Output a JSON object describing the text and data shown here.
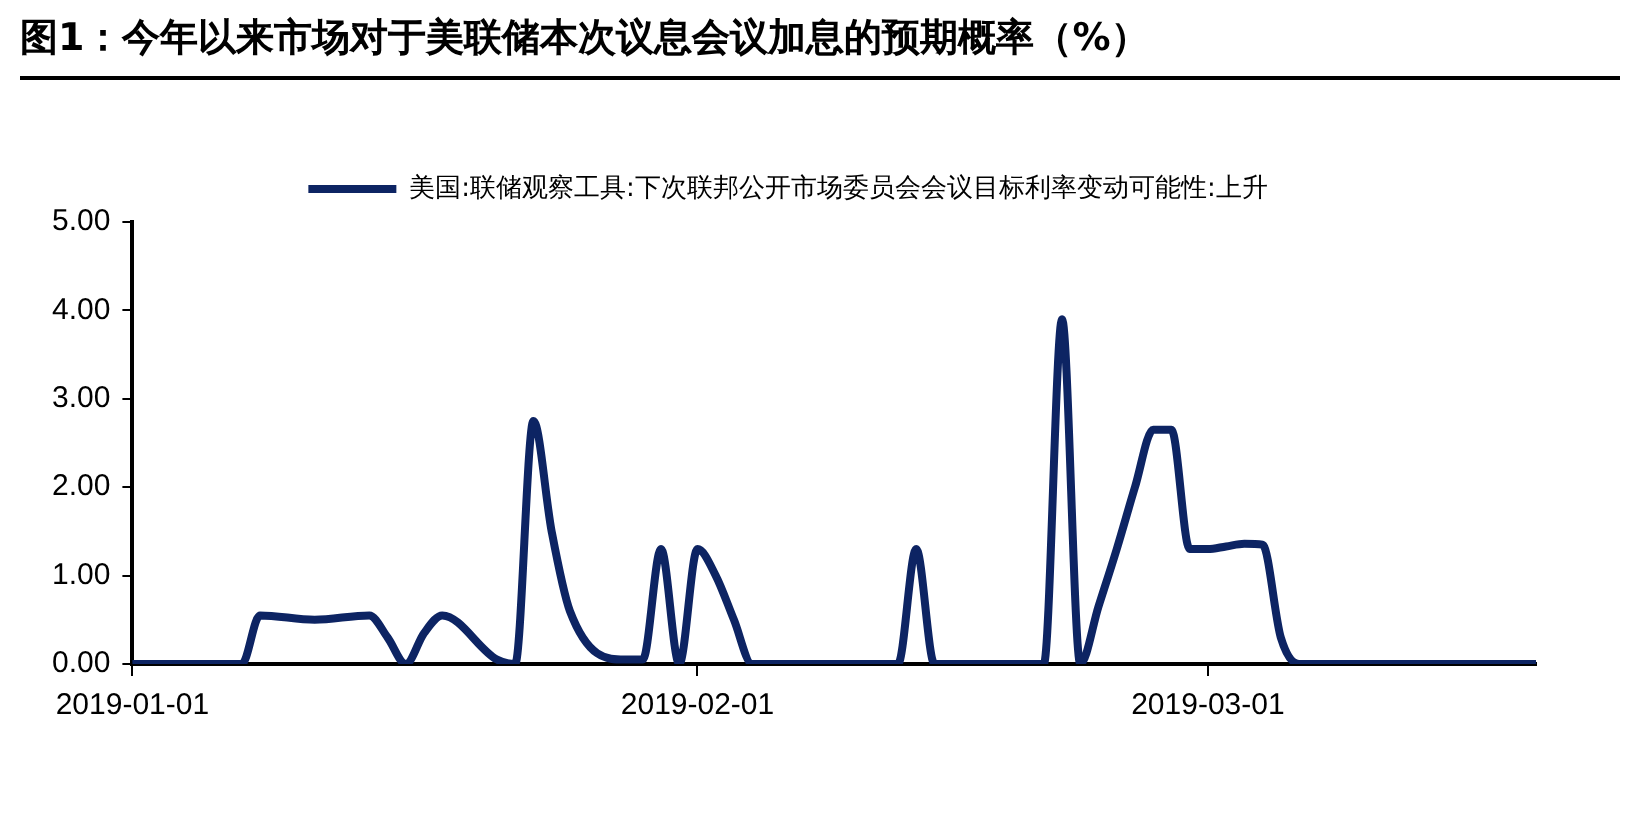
{
  "chart_data": {
    "type": "line",
    "title": "图1：今年以来市场对于美联储本次议息会议加息的预期概率（%）",
    "x": [
      "2019-01-01",
      "2019-01-07",
      "2019-01-08",
      "2019-01-11",
      "2019-01-14",
      "2019-01-15",
      "2019-01-16",
      "2019-01-17",
      "2019-01-18",
      "2019-01-21",
      "2019-01-22",
      "2019-01-23",
      "2019-01-24",
      "2019-01-25",
      "2019-01-28",
      "2019-01-29",
      "2019-01-30",
      "2019-01-31",
      "2019-02-01",
      "2019-02-02",
      "2019-02-03",
      "2019-02-04",
      "2019-02-12",
      "2019-02-13",
      "2019-02-14",
      "2019-02-20",
      "2019-02-21",
      "2019-02-22",
      "2019-02-23",
      "2019-02-24",
      "2019-02-25",
      "2019-02-26",
      "2019-02-27",
      "2019-02-28",
      "2019-03-01",
      "2019-03-02",
      "2019-03-03",
      "2019-03-04",
      "2019-03-05",
      "2019-03-06",
      "2019-03-19"
    ],
    "series": [
      {
        "name": "美国:联储观察工具:下次联邦公开市场委员会会议目标利率变动可能性:上升",
        "color": "#0d2463",
        "values": [
          0,
          0,
          0.55,
          0.5,
          0.55,
          0.3,
          0,
          0.35,
          0.55,
          0.05,
          0,
          2.75,
          1.5,
          0.6,
          0.05,
          0.05,
          1.3,
          0,
          1.3,
          1.0,
          0.5,
          0,
          0,
          1.3,
          0,
          0,
          3.9,
          0,
          0.65,
          1.3,
          2.0,
          2.65,
          2.65,
          1.3,
          1.3,
          1.33,
          1.36,
          1.35,
          0.3,
          0,
          0
        ]
      }
    ],
    "xlim": [
      "2019-01-01",
      "2019-03-19"
    ],
    "xticks": [
      {
        "value": "2019-01-01",
        "label": "2019-01-01"
      },
      {
        "value": "2019-02-01",
        "label": "2019-02-01"
      },
      {
        "value": "2019-03-01",
        "label": "2019-03-01"
      }
    ],
    "ylim": [
      0,
      5
    ],
    "yticks": [
      {
        "value": 0,
        "label": "0.00"
      },
      {
        "value": 1,
        "label": "1.00"
      },
      {
        "value": 2,
        "label": "2.00"
      },
      {
        "value": 3,
        "label": "3.00"
      },
      {
        "value": 4,
        "label": "4.00"
      },
      {
        "value": 5,
        "label": "5.00"
      }
    ],
    "grid": false,
    "legend": "top",
    "marker": "none",
    "line_style": "solid"
  }
}
